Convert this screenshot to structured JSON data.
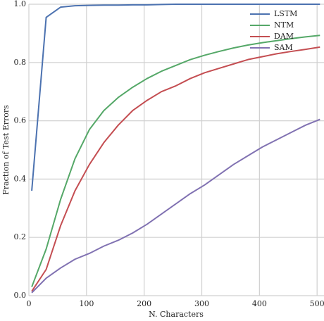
{
  "chart_data": {
    "type": "line",
    "xlabel": "N. Characters",
    "ylabel": "Fraction of Test Errors",
    "x": [
      5,
      30,
      55,
      80,
      105,
      130,
      155,
      180,
      205,
      230,
      255,
      280,
      305,
      330,
      355,
      380,
      405,
      430,
      455,
      480,
      505
    ],
    "series": [
      {
        "name": "LSTM",
        "color": "#4c72b0",
        "values": [
          0.36,
          0.955,
          0.99,
          0.995,
          0.996,
          0.997,
          0.997,
          0.998,
          0.998,
          0.999,
          1,
          1,
          1,
          1,
          1,
          1,
          1,
          1,
          1,
          1,
          1
        ]
      },
      {
        "name": "NTM",
        "color": "#55a868",
        "values": [
          0.03,
          0.16,
          0.33,
          0.47,
          0.57,
          0.635,
          0.68,
          0.715,
          0.745,
          0.77,
          0.79,
          0.81,
          0.825,
          0.838,
          0.85,
          0.86,
          0.868,
          0.875,
          0.882,
          0.888,
          0.893
        ]
      },
      {
        "name": "DAM",
        "color": "#c44e52",
        "values": [
          0.015,
          0.09,
          0.24,
          0.36,
          0.45,
          0.525,
          0.585,
          0.635,
          0.67,
          0.7,
          0.72,
          0.745,
          0.765,
          0.78,
          0.795,
          0.81,
          0.82,
          0.83,
          0.838,
          0.845,
          0.853
        ]
      },
      {
        "name": "SAM",
        "color": "#8172b2",
        "values": [
          0.01,
          0.06,
          0.095,
          0.125,
          0.145,
          0.17,
          0.19,
          0.215,
          0.245,
          0.28,
          0.315,
          0.35,
          0.38,
          0.415,
          0.45,
          0.48,
          0.51,
          0.535,
          0.56,
          0.585,
          0.605
        ]
      }
    ],
    "xlim": [
      0,
      512
    ],
    "xticks": [
      0,
      100,
      200,
      300,
      400,
      500
    ],
    "ylim": [
      0,
      1
    ],
    "yticks": [
      {
        "value": 0,
        "label": "0.0"
      },
      0.2,
      0.4,
      0.6,
      0.8,
      {
        "value": 1,
        "label": "1.0"
      }
    ],
    "grid": true,
    "legend": "upper right"
  }
}
